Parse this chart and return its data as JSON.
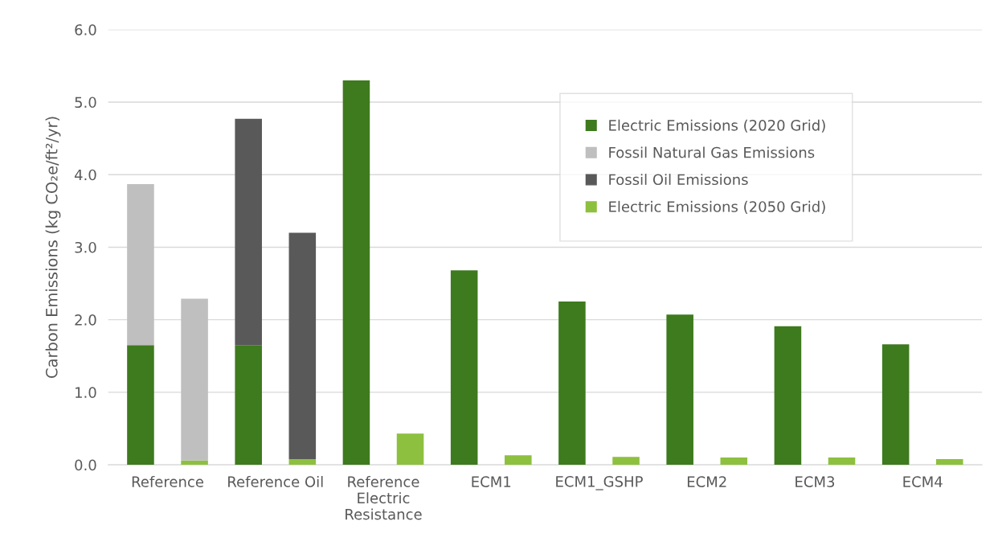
{
  "chart_data": {
    "type": "bar",
    "stacked": true,
    "ylabel": "Carbon Emissions (kg CO₂e/ft²/yr)",
    "categories": [
      "Reference",
      null,
      "Reference Oil",
      null,
      "Reference\nElectric\nResistance",
      null,
      "ECM1",
      null,
      "ECM1_GSHP",
      null,
      "ECM2",
      null,
      "ECM3",
      null,
      "ECM4",
      null
    ],
    "ylim": [
      0,
      6
    ],
    "yticks": [
      {
        "value": 0,
        "label": "0.0"
      },
      {
        "value": 1,
        "label": "1.0"
      },
      {
        "value": 2,
        "label": "2.0"
      },
      {
        "value": 3,
        "label": "3.0"
      },
      {
        "value": 4,
        "label": "4.0"
      },
      {
        "value": 5,
        "label": "5.0"
      },
      {
        "value": 6,
        "label": "6.0"
      }
    ],
    "grid": "y",
    "legend": "top right",
    "series": [
      {
        "name": "Electric Emissions (2020 Grid)",
        "color": "#3e7a1e",
        "values": [
          1.65,
          null,
          1.65,
          null,
          5.3,
          null,
          2.68,
          null,
          2.25,
          null,
          2.07,
          null,
          1.91,
          null,
          1.66,
          null
        ]
      },
      {
        "name": "Fossil Natural Gas Emissions",
        "color": "#bfbfbf",
        "values": [
          2.22,
          null,
          null,
          null,
          null,
          null,
          null,
          null,
          null,
          null,
          null,
          null,
          null,
          null,
          null,
          null
        ]
      },
      {
        "name": "Fossil Oil Emissions",
        "color": "#595959",
        "values": [
          null,
          null,
          3.12,
          null,
          null,
          null,
          null,
          null,
          null,
          null,
          null,
          null,
          null,
          null,
          null,
          null
        ]
      },
      {
        "name": "Electric Emissions (2050 Grid)",
        "color": "#8dc03f",
        "values": [
          null,
          0.06,
          null,
          0.08,
          null,
          0.43,
          null,
          0.13,
          null,
          0.11,
          null,
          0.1,
          null,
          0.1,
          null,
          0.08
        ]
      },
      {
        "color": "#bfbfbf",
        "values": [
          null,
          2.23,
          null,
          null,
          null,
          null,
          null,
          null,
          null,
          null,
          null,
          null,
          null,
          null,
          null,
          null
        ]
      },
      {
        "color": "#595959",
        "values": [
          null,
          null,
          null,
          3.12,
          null,
          null,
          null,
          null,
          null,
          null,
          null,
          null,
          null,
          null,
          null,
          null
        ]
      }
    ]
  }
}
